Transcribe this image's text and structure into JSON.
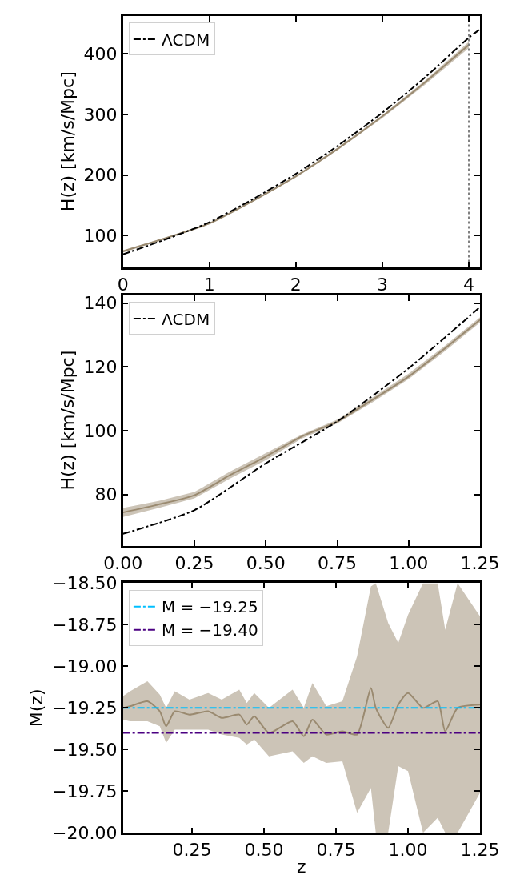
{
  "chart_data": [
    {
      "type": "line",
      "ylabel": "H(z) [km/s/Mpc]",
      "xlim": [
        0,
        4.13
      ],
      "ylim": [
        48,
        463
      ],
      "xticks": [
        0,
        1,
        2,
        3,
        4
      ],
      "yticks": [
        100,
        200,
        300,
        400
      ],
      "grid": false,
      "legend": "top left",
      "line_style": "solid",
      "series": [
        {
          "color": "#9a8a70",
          "x": [
            0,
            0.5,
            1,
            1.5,
            2,
            2.5,
            3,
            3.5,
            4
          ],
          "values": [
            74,
            96,
            120,
            157,
            198,
            245,
            297,
            354,
            415
          ],
          "lower": [
            72,
            95,
            119,
            156,
            196,
            243,
            294,
            350,
            410
          ],
          "upper": [
            76,
            97,
            121,
            158,
            199,
            247,
            299,
            357,
            420
          ]
        },
        {
          "name": "ΛCDM",
          "color": "#000000",
          "line_style": "dashdot",
          "x": [
            0,
            0.5,
            1,
            1.5,
            2,
            2.5,
            3,
            3.5,
            4,
            4.13
          ],
          "values": [
            69,
            94,
            122,
            160,
            202,
            250,
            303,
            362,
            427,
            441
          ]
        }
      ],
      "ref_lines": [
        {
          "axis": "x",
          "value": 4,
          "color": "#808080",
          "line_style": "dotted"
        }
      ]
    },
    {
      "type": "line",
      "ylabel": "H(z) [km/s/Mpc]",
      "xlim": [
        0,
        1.25
      ],
      "ylim": [
        64,
        142.5
      ],
      "xticks": [
        {
          "value": 0,
          "label": "0.00"
        },
        {
          "value": 0.25,
          "label": "0.25"
        },
        {
          "value": 0.5,
          "label": "0.50"
        },
        {
          "value": 0.75,
          "label": "0.75"
        },
        {
          "value": 1,
          "label": "1.00"
        },
        {
          "value": 1.25,
          "label": "1.25"
        }
      ],
      "yticks": [
        80,
        100,
        120,
        140
      ],
      "grid": false,
      "legend": "top left",
      "line_style": "solid",
      "series": [
        {
          "color": "#9a8a70",
          "x": [
            0,
            0.125,
            0.25,
            0.375,
            0.5,
            0.625,
            0.75,
            0.875,
            1,
            1.125,
            1.25
          ],
          "values": [
            74.4,
            76.9,
            79.8,
            86.1,
            91.9,
            98.2,
            102.9,
            109.8,
            117,
            125.7,
            134.8
          ],
          "lower": [
            73,
            75.8,
            78.8,
            85,
            90.8,
            97.5,
            102.3,
            109,
            116.2,
            124.8,
            134
          ],
          "upper": [
            75.8,
            78,
            80.8,
            87.2,
            93,
            98.8,
            103.5,
            110.5,
            117.9,
            126.5,
            135.6
          ]
        },
        {
          "name": "ΛCDM",
          "color": "#000000",
          "line_style": "dashdot",
          "x": [
            0,
            0.25,
            0.5,
            0.75,
            1,
            1.25
          ],
          "values": [
            67.7,
            75.1,
            89.8,
            102.9,
            119.6,
            138.8
          ]
        }
      ]
    },
    {
      "type": "line",
      "xlabel": "z",
      "ylabel": "M(z)",
      "xlim": [
        0.01,
        1.25
      ],
      "ylim": [
        -20,
        -18.5
      ],
      "xticks": [
        {
          "value": 0.25,
          "label": "0.25"
        },
        {
          "value": 0.5,
          "label": "0.50"
        },
        {
          "value": 0.75,
          "label": "0.75"
        },
        {
          "value": 1,
          "label": "1.00"
        },
        {
          "value": 1.25,
          "label": "1.25"
        }
      ],
      "yticks": [
        {
          "value": -18.5,
          "label": "−18.50"
        },
        {
          "value": -18.75,
          "label": "−18.75"
        },
        {
          "value": -19,
          "label": "−19.00"
        },
        {
          "value": -19.25,
          "label": "−19.25"
        },
        {
          "value": -19.5,
          "label": "−19.50"
        },
        {
          "value": -19.75,
          "label": "−19.75"
        },
        {
          "value": -20,
          "label": "−20.00"
        }
      ],
      "grid": false,
      "legend": "top left",
      "line_style": "solid",
      "series": [
        {
          "color": "#9a8a70",
          "x": [
            0.01,
            0.035,
            0.095,
            0.138,
            0.16,
            0.19,
            0.241,
            0.306,
            0.353,
            0.414,
            0.44,
            0.466,
            0.517,
            0.599,
            0.638,
            0.668,
            0.716,
            0.772,
            0.823,
            0.871,
            0.888,
            0.931,
            0.966,
            1.0,
            1.052,
            1.103,
            1.129,
            1.172,
            1.25
          ],
          "values": [
            -19.25,
            -19.24,
            -19.21,
            -19.27,
            -19.36,
            -19.27,
            -19.29,
            -19.27,
            -19.31,
            -19.29,
            -19.35,
            -19.3,
            -19.4,
            -19.33,
            -19.42,
            -19.32,
            -19.41,
            -19.39,
            -19.41,
            -19.13,
            -19.25,
            -19.37,
            -19.23,
            -19.16,
            -19.25,
            -19.21,
            -19.39,
            -19.25,
            -19.23
          ],
          "lower": [
            -19.32,
            -19.33,
            -19.33,
            -19.36,
            -19.46,
            -19.38,
            -19.38,
            -19.38,
            -19.41,
            -19.43,
            -19.47,
            -19.44,
            -19.54,
            -19.51,
            -19.58,
            -19.54,
            -19.58,
            -19.57,
            -19.88,
            -19.73,
            -20,
            -20,
            -19.6,
            -19.63,
            -20,
            -19.91,
            -20,
            -20,
            -19.76
          ],
          "upper": [
            -19.18,
            -19.15,
            -19.09,
            -19.17,
            -19.25,
            -19.15,
            -19.2,
            -19.16,
            -19.2,
            -19.14,
            -19.22,
            -19.16,
            -19.25,
            -19.14,
            -19.25,
            -19.1,
            -19.24,
            -19.21,
            -18.94,
            -18.52,
            -18.5,
            -18.74,
            -18.86,
            -18.69,
            -18.5,
            -18.5,
            -18.78,
            -18.5,
            -18.7
          ]
        }
      ],
      "ref_lines": [
        {
          "axis": "y",
          "value": -19.25,
          "label": "M = −19.25",
          "color": "#00bfff",
          "line_style": "dashdot"
        },
        {
          "axis": "y",
          "value": -19.4,
          "label": "M = −19.40",
          "color": "#4b0082",
          "line_style": "dashdot"
        }
      ]
    }
  ]
}
